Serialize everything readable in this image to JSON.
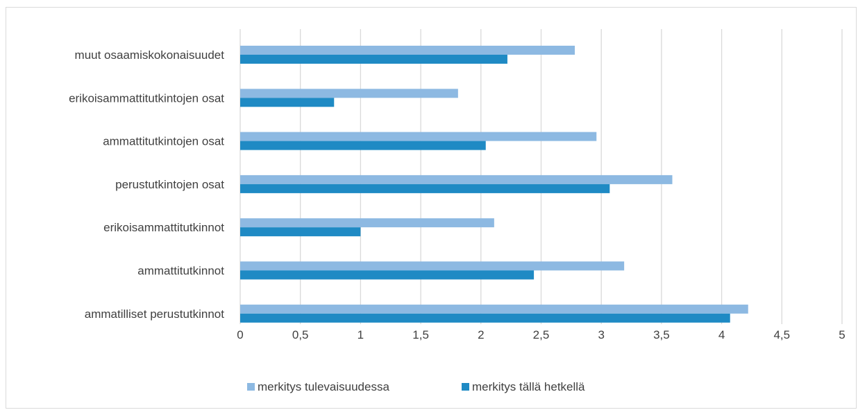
{
  "chart_data": {
    "type": "bar",
    "orientation": "horizontal",
    "title": "",
    "xlabel": "",
    "ylabel": "",
    "xlim": [
      0,
      5
    ],
    "ticks": [
      "0",
      "0,5",
      "1",
      "1,5",
      "2",
      "2,5",
      "3",
      "3,5",
      "4",
      "4,5",
      "5"
    ],
    "tick_values": [
      0,
      0.5,
      1,
      1.5,
      2,
      2.5,
      3,
      3.5,
      4,
      4.5,
      5
    ],
    "grid": true,
    "legend_position": "bottom",
    "categories": [
      "muut osaamiskokonaisuudet",
      "erikoisammattitutkintojen osat",
      "ammattitutkintojen osat",
      "perustutkintojen osat",
      "erikoisammattitutkinnot",
      "ammattitutkinnot",
      "ammatilliset perustutkinnot"
    ],
    "series": [
      {
        "name": "merkitys tulevaisuudessa",
        "color": "#8DB9E2",
        "values": [
          2.78,
          1.81,
          2.96,
          3.59,
          2.11,
          3.19,
          4.22
        ]
      },
      {
        "name": "merkitys tällä hetkellä",
        "color": "#1F8AC4",
        "values": [
          2.22,
          0.78,
          2.04,
          3.07,
          1.0,
          2.44,
          4.07
        ]
      }
    ]
  }
}
